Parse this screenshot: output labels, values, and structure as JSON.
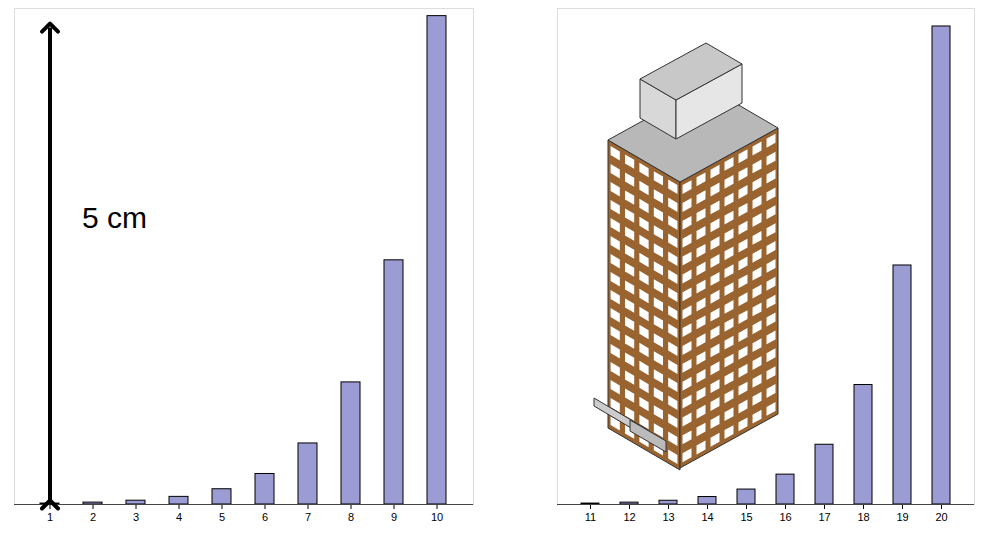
{
  "chart_data": [
    {
      "type": "bar",
      "categories": [
        1,
        2,
        3,
        4,
        5,
        6,
        7,
        8,
        9,
        10
      ],
      "values": [
        0.01,
        0.02,
        0.04,
        0.08,
        0.16,
        0.32,
        0.64,
        1.28,
        2.56,
        5.12
      ],
      "color": "#9c9cd4",
      "ylim": [
        0,
        5.2
      ],
      "yticks": [],
      "tick_labels": "x",
      "annotations": [
        {
          "text": "5 cm",
          "value": 5
        }
      ]
    },
    {
      "type": "bar",
      "categories": [
        11,
        12,
        13,
        14,
        15,
        16,
        17,
        18,
        19,
        20
      ],
      "values": [
        10.24,
        20.48,
        40.96,
        81.92,
        163.84,
        327.68,
        655.36,
        1310.72,
        2621.44,
        5242.88
      ],
      "color": "#9c9cd4",
      "ylim": [
        0,
        5440
      ],
      "yticks": [],
      "tick_labels": "x"
    }
  ]
}
